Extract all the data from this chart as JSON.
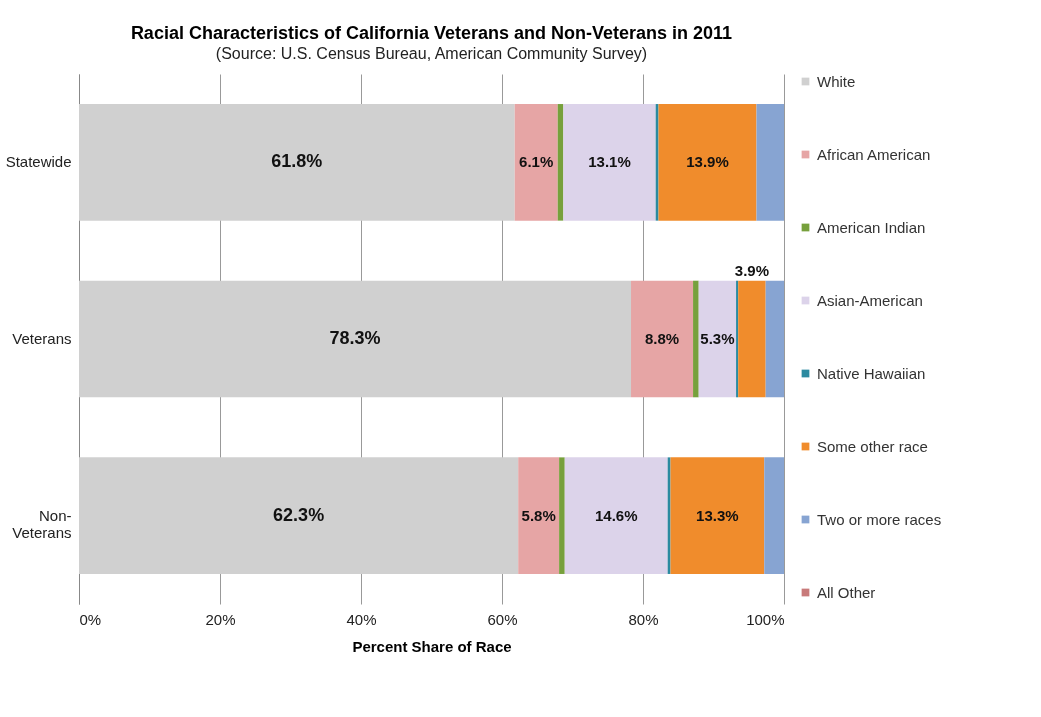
{
  "chart_data": {
    "type": "bar",
    "orientation": "horizontal",
    "stacked": true,
    "title": "Racial Characteristics of California Veterans and Non-Veterans in 2011",
    "subtitle": "(Source: U.S. Census Bureau, American Community Survey)",
    "xlabel": "Percent Share of Race",
    "categories": [
      "Statewide",
      "Veterans",
      "Non-\nVeterans"
    ],
    "series": [
      {
        "name": "White",
        "color": "#d0d0d0",
        "values": [
          61.8,
          78.3,
          62.3
        ],
        "value_labels": [
          "61.8%",
          "78.3%",
          "62.3%"
        ]
      },
      {
        "name": "African American",
        "color": "#e6a5a5",
        "values": [
          6.1,
          8.8,
          5.8
        ],
        "value_labels": [
          "6.1%",
          "8.8%",
          "5.8%"
        ]
      },
      {
        "name": "American Indian",
        "color": "#77a03c",
        "values": [
          0.8,
          0.8,
          0.8
        ],
        "value_labels": [
          null,
          null,
          null
        ]
      },
      {
        "name": "Asian-American",
        "color": "#dcd3ea",
        "values": [
          13.1,
          5.3,
          14.6
        ],
        "value_labels": [
          "13.1%",
          "5.3%",
          "14.6%"
        ]
      },
      {
        "name": "Native Hawaiian",
        "color": "#2c8aa0",
        "values": [
          0.4,
          0.3,
          0.4
        ],
        "value_labels": [
          null,
          null,
          null
        ]
      },
      {
        "name": "Some other race",
        "color": "#f08c2c",
        "values": [
          13.9,
          3.9,
          13.3
        ],
        "value_labels": [
          "13.9%",
          "3.9%",
          "13.3%"
        ]
      },
      {
        "name": "Two or more races",
        "color": "#87a4d2",
        "values": [
          3.9,
          2.6,
          2.8
        ],
        "value_labels": [
          null,
          null,
          null
        ]
      },
      {
        "name": "All Other",
        "color": "#c87a7a",
        "values": [
          0,
          0,
          0
        ],
        "value_labels": [
          null,
          null,
          null
        ]
      }
    ],
    "xlim": [
      0,
      100
    ],
    "xticks": [
      {
        "value": 0,
        "label": "0%"
      },
      {
        "value": 20,
        "label": "20%"
      },
      {
        "value": 40,
        "label": "40%"
      },
      {
        "value": 60,
        "label": "60%"
      },
      {
        "value": 80,
        "label": "80%"
      },
      {
        "value": 100,
        "label": "100%"
      }
    ],
    "grid": "x",
    "legend": "right"
  }
}
